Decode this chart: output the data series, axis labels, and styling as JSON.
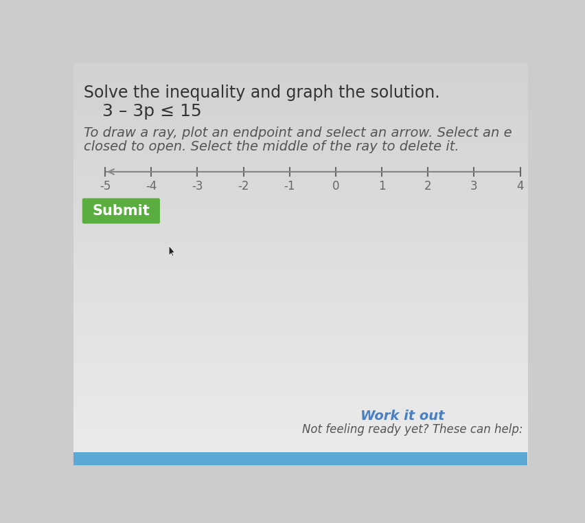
{
  "title": "Solve the inequality and graph the solution.",
  "inequality": "3 – 3p ≤ 15",
  "instruction_line1": "To draw a ray, plot an endpoint and select an arrow. Select an e",
  "instruction_line2": "closed to open. Select the middle of the ray to delete it.",
  "number_line_min": -5,
  "number_line_max": 4,
  "tick_labels": [
    "-5",
    "-4",
    "-3",
    "-2",
    "-1",
    "0",
    "1",
    "2",
    "3",
    "4"
  ],
  "tick_values": [
    -5,
    -4,
    -3,
    -2,
    -1,
    0,
    1,
    2,
    3,
    4
  ],
  "bg_top": "#c8c8c8",
  "bg_bottom": "#e8e8e8",
  "title_color": "#333333",
  "inequality_color": "#333333",
  "instruction_color": "#555555",
  "number_line_color": "#888888",
  "tick_color": "#666666",
  "submit_button_color": "#5aad3f",
  "submit_text_color": "#ffffff",
  "submit_text": "Submit",
  "work_it_out_color": "#4a7fc1",
  "work_it_out_text": "Work it out",
  "not_ready_text": "Not feeling ready yet? These can help:",
  "not_ready_color": "#555555",
  "title_fontsize": 17,
  "inequality_fontsize": 18,
  "instruction_fontsize": 14,
  "tick_fontsize": 12
}
